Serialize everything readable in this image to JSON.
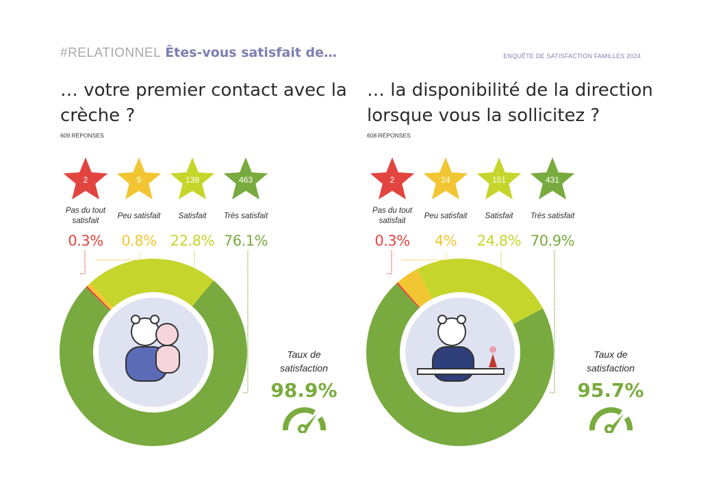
{
  "header": {
    "tag": "#RELATIONNEL",
    "question": "Êtes-vous satisfait de…",
    "survey": "ENQUÊTE DE SATISFACTION FAMILLES 2024"
  },
  "colors": {
    "red": "#e2453f",
    "yellow": "#f2c632",
    "lime": "#c5d52b",
    "green": "#79aa3f"
  },
  "chart_data": [
    {
      "type": "pie",
      "title": "… votre premier contact avec la crèche ?",
      "responses": "609 RÉPONSES",
      "categories": [
        "Pas du tout satisfait",
        "Peu satisfait",
        "Satisfait",
        "Très satisfait"
      ],
      "counts": [
        "2",
        "5",
        "139",
        "463"
      ],
      "percent_labels": [
        "0.3%",
        "0.8%",
        "22.8%",
        "76.1%"
      ],
      "values": [
        0.3,
        0.8,
        22.8,
        76.1
      ],
      "rate_label": "Taux de satisfaction",
      "rate_value": "98.9%"
    },
    {
      "type": "pie",
      "title": "… la disponibilité de la direction lorsque vous la sollicitez ?",
      "responses": "608 RÉPONSES",
      "categories": [
        "Pas du tout satisfait",
        "Peu satisfait",
        "Satisfait",
        "Très satisfait"
      ],
      "counts": [
        "2",
        "24",
        "151",
        "431"
      ],
      "percent_labels": [
        "0.3%",
        "4%",
        "24.8%",
        "70.9%"
      ],
      "values": [
        0.3,
        4,
        24.8,
        70.9
      ],
      "rate_label": "Taux de satisfaction",
      "rate_value": "95.7%"
    }
  ]
}
